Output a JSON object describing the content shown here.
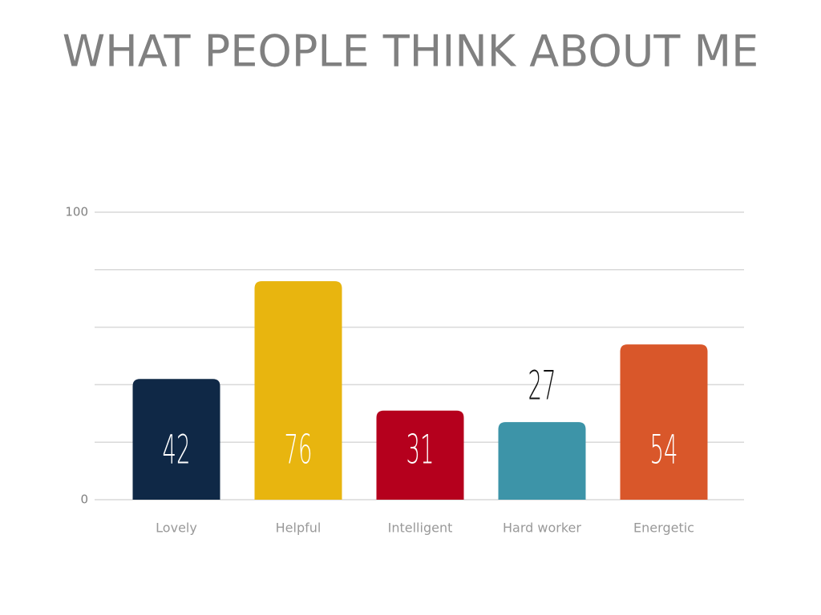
{
  "chart_data": {
    "type": "bar",
    "title": "WHAT PEOPLE THINK ABOUT ME",
    "categories": [
      "Lovely",
      "Helpful",
      "Intelligent",
      "Hard worker",
      "Energetic"
    ],
    "values": [
      42,
      76,
      31,
      27,
      54
    ],
    "colors": [
      "#0f2846",
      "#e8b50f",
      "#b5001d",
      "#3d94a8",
      "#d9572a"
    ],
    "ylim": [
      0,
      100
    ],
    "yticks": [
      0,
      100
    ],
    "ygrid": [
      0,
      20,
      40,
      60,
      80,
      100
    ],
    "grid": true
  }
}
